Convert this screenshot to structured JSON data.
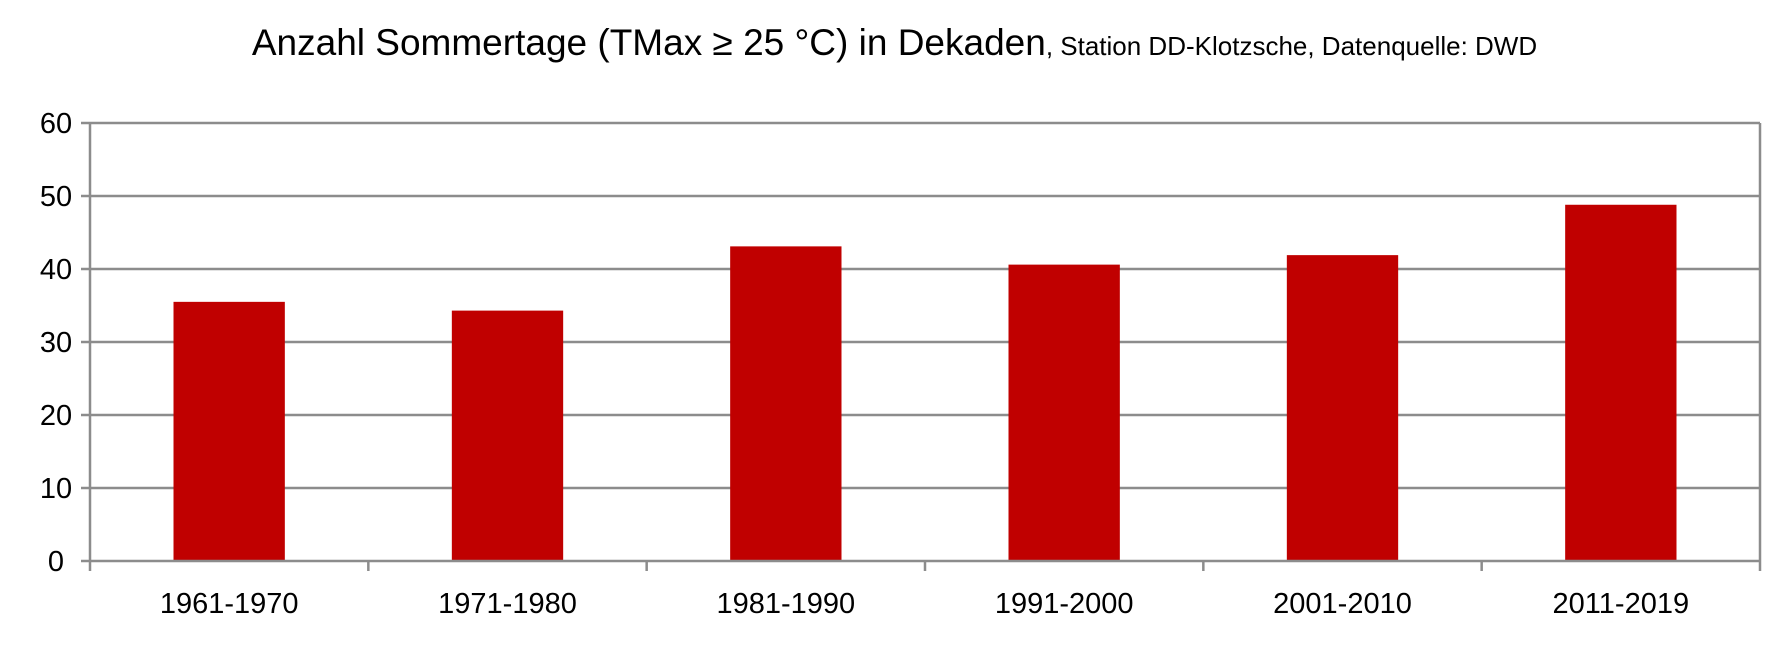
{
  "chart_data": {
    "type": "bar",
    "title": "Anzahl Sommertage (TMax ≥ 25 °C) in Dekaden",
    "subtitle": ", Station DD-Klotzsche, Datenquelle: DWD",
    "xlabel": "",
    "ylabel": "",
    "categories": [
      "1961-1970",
      "1971-1980",
      "1981-1990",
      "1991-2000",
      "2001-2010",
      "2011-2019"
    ],
    "values": [
      35.5,
      34.3,
      43.1,
      40.6,
      41.9,
      48.8
    ],
    "ylim": [
      0,
      60
    ],
    "yticks": [
      "0",
      "10",
      "20",
      "30",
      "40",
      "50",
      "60"
    ],
    "grid": true,
    "legend": "none",
    "colors": {
      "bar": "#C00000",
      "grid": "#8C8C8C",
      "axis": "#8C8C8C",
      "text": "#000000"
    }
  }
}
